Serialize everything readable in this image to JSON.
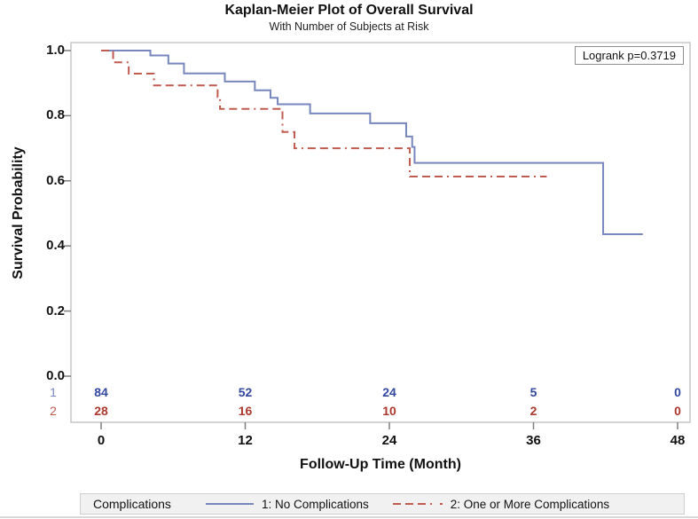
{
  "axes": {
    "x_ticks": [
      "0",
      "12",
      "24",
      "36",
      "48"
    ],
    "y_ticks": [
      "1.0",
      "0.8",
      "0.6",
      "0.4",
      "0.2",
      "0.0"
    ]
  },
  "legend": {
    "title": "Complications"
  },
  "colors": {
    "frame": "#c6c6c6",
    "tick": "#7f7f7f",
    "group1_line": "#7786bd",
    "group2_line": "#c05b50",
    "group1_text": "#33499e",
    "group2_text": "#ab392e",
    "legend_bg": "#f1f1f1",
    "legend_border": "#cfcfcf"
  },
  "chart_data": {
    "type": "line",
    "subtype": "kaplan-meier-step",
    "title": "Kaplan-Meier Plot of Overall Survival",
    "subtitle": "With Number of Subjects at Risk",
    "xlabel": "Follow-Up Time (Month)",
    "ylabel": "Survival Probability",
    "xlim": [
      0,
      48
    ],
    "ylim": [
      0.0,
      1.0
    ],
    "x_tick_values": [
      0,
      12,
      24,
      36,
      48
    ],
    "y_tick_values": [
      1.0,
      0.8,
      0.6,
      0.4,
      0.2,
      0.0
    ],
    "grid": false,
    "legend_position": "bottom",
    "annotation": "Logrank p=0.3719",
    "series": [
      {
        "name": "1: No Complications",
        "color": "#7786bd",
        "style": "solid",
        "step_points": [
          [
            0,
            1.0
          ],
          [
            4.1,
            0.985
          ],
          [
            5.6,
            0.96
          ],
          [
            6.9,
            0.93
          ],
          [
            10.3,
            0.905
          ],
          [
            12.8,
            0.878
          ],
          [
            14.1,
            0.855
          ],
          [
            14.7,
            0.835
          ],
          [
            17.4,
            0.807
          ],
          [
            22.4,
            0.777
          ],
          [
            25.4,
            0.736
          ],
          [
            25.9,
            0.704
          ],
          [
            26.1,
            0.655
          ],
          [
            41.8,
            0.436
          ],
          [
            45.1,
            0.436
          ]
        ]
      },
      {
        "name": "2: One or More Complications",
        "color": "#c05b50",
        "style": "dashed",
        "step_points": [
          [
            0,
            1.0
          ],
          [
            1.0,
            0.964
          ],
          [
            2.3,
            0.929
          ],
          [
            4.4,
            0.893
          ],
          [
            9.7,
            0.857
          ],
          [
            9.9,
            0.821
          ],
          [
            15.1,
            0.75
          ],
          [
            16.1,
            0.7
          ],
          [
            25.7,
            0.613
          ],
          [
            37.1,
            0.613
          ]
        ]
      }
    ],
    "at_risk_times": [
      0,
      12,
      24,
      36,
      48
    ],
    "at_risk": [
      {
        "group": "1",
        "counts": [
          84,
          52,
          24,
          5,
          0
        ],
        "value_color": "#33499e",
        "label_color": "#7786bd"
      },
      {
        "group": "2",
        "counts": [
          28,
          16,
          10,
          2,
          0
        ],
        "value_color": "#ab392e",
        "label_color": "#c05b50"
      }
    ]
  }
}
